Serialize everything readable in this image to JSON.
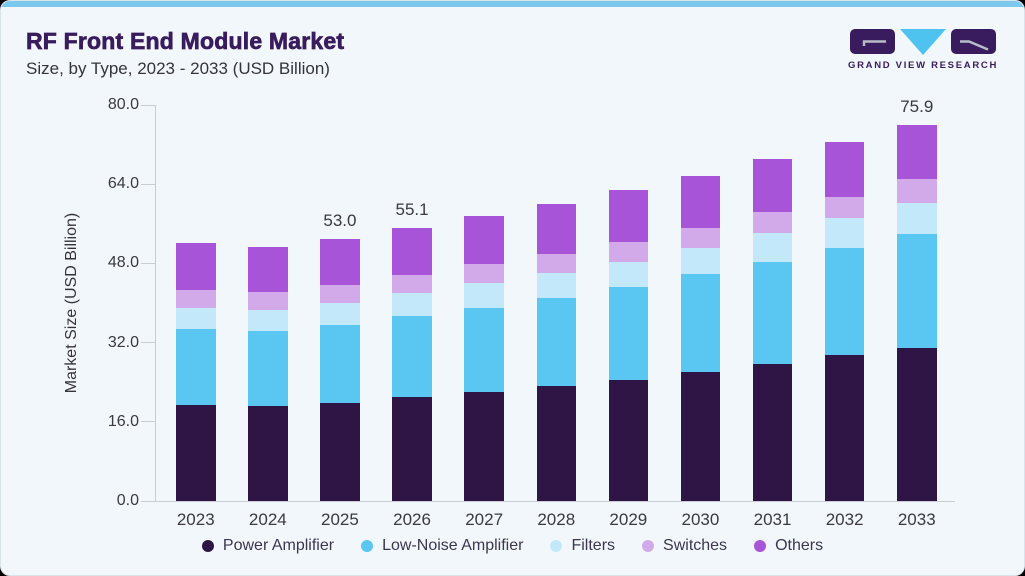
{
  "header": {
    "title": "RF Front End Module Market",
    "subtitle": "Size, by Type, 2023 - 2033 (USD Billion)",
    "logo_text": "GRAND VIEW RESEARCH"
  },
  "colors": {
    "card_bg": "#f2f7fb",
    "card_border": "#d9e3ea",
    "accent_bar": "#7cc8ec",
    "title_text": "#391c5e",
    "body_text": "#35333c",
    "tick_text": "#3b3941",
    "label_text": "#3a3840",
    "legend_text": "#3c3650",
    "axis_line": "#c8cdd5",
    "brand_purple": "#391c5e",
    "brand_blue": "#4fc3f0",
    "logo_mark_stroke": "#b9bcc9"
  },
  "chart_data": {
    "type": "bar",
    "stacked": true,
    "title": "RF Front End Module Market Size, by Type, 2023 - 2033 (USD Billion)",
    "ylabel": "Market Size (USD Billion)",
    "xlabel": "",
    "ylim": [
      0,
      80
    ],
    "ytick_values": [
      0,
      16,
      32,
      48,
      64,
      80
    ],
    "ytick_labels": [
      "0.0",
      "16.0",
      "32.0",
      "48.0",
      "64.0",
      "80.0"
    ],
    "grid": false,
    "legend_position": "bottom",
    "categories": [
      "2023",
      "2024",
      "2025",
      "2026",
      "2027",
      "2028",
      "2029",
      "2030",
      "2031",
      "2032",
      "2033"
    ],
    "series": [
      {
        "name": "Power Amplifier",
        "color": "#2f1546",
        "values": [
          19.3,
          19.1,
          19.8,
          21.0,
          22.1,
          23.3,
          24.5,
          26.1,
          27.6,
          29.4,
          31.0
        ]
      },
      {
        "name": "Low-Noise Amplifier",
        "color": "#5ac7f2",
        "values": [
          15.4,
          15.2,
          15.8,
          16.3,
          16.9,
          17.8,
          18.7,
          19.7,
          20.6,
          21.8,
          22.9
        ]
      },
      {
        "name": "Filters",
        "color": "#c3e8fa",
        "values": [
          4.2,
          4.2,
          4.5,
          4.7,
          5.0,
          5.0,
          5.1,
          5.4,
          5.9,
          5.9,
          6.3
        ]
      },
      {
        "name": "Switches",
        "color": "#d2a9e9",
        "values": [
          3.7,
          3.7,
          3.5,
          3.6,
          3.8,
          3.9,
          4.1,
          4.0,
          4.3,
          4.3,
          4.8
        ]
      },
      {
        "name": "Others",
        "color": "#a854d8",
        "values": [
          9.6,
          9.1,
          9.4,
          9.5,
          9.7,
          10.1,
          10.4,
          10.4,
          10.6,
          11.1,
          10.9
        ]
      }
    ],
    "totals": [
      52.2,
      51.3,
      53.0,
      55.1,
      57.5,
      60.1,
      62.8,
      65.6,
      69.0,
      72.5,
      75.9
    ],
    "bar_total_labels": [
      "",
      "",
      "53.0",
      "55.1",
      "",
      "",
      "",
      "",
      "",
      "",
      "75.9"
    ]
  }
}
